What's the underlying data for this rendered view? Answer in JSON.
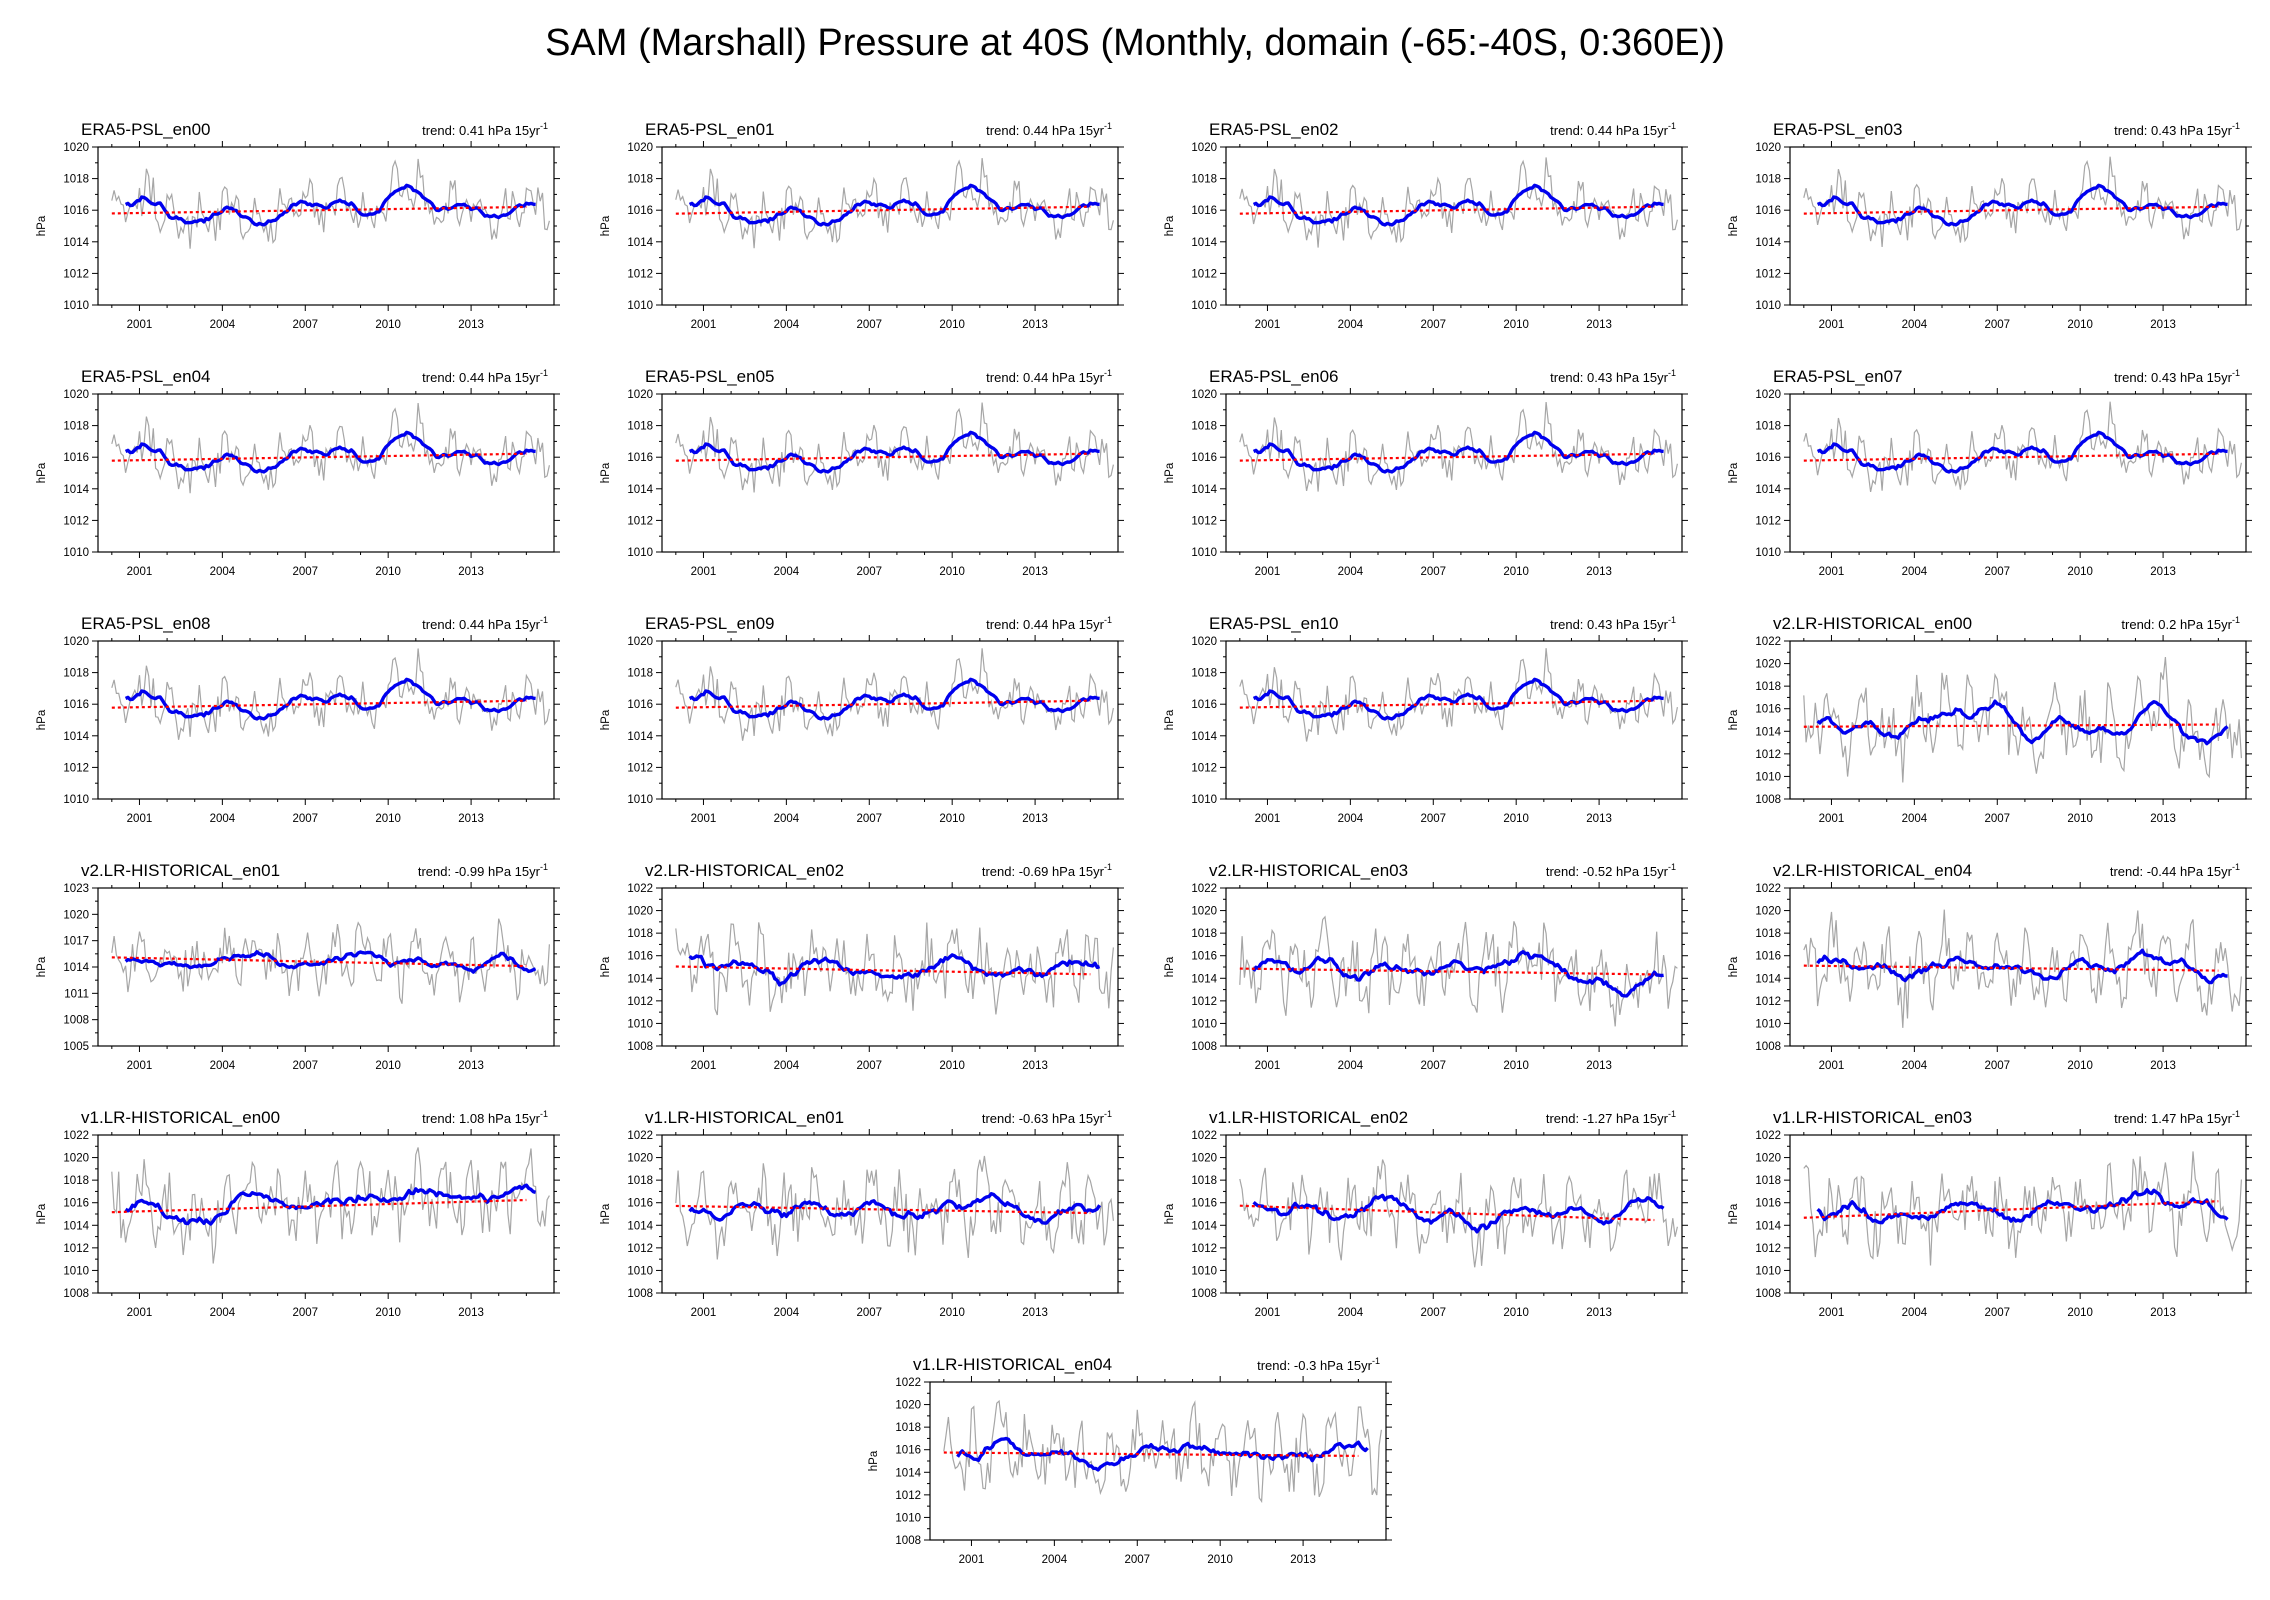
{
  "figure": {
    "title": "SAM (Marshall) Pressure at 40S (Monthly, domain (-65:-40S, 0:360E))",
    "ylabel": "hPa",
    "trend_unit": "hPa 15yr",
    "trend_unit_superscript": "-1"
  },
  "style": {
    "raw_color": "#a6a6a6",
    "running_mean_color": "#0000ee",
    "trend_color": "#ff0000",
    "background": "#ffffff"
  },
  "chart_data": [
    {
      "type": "line",
      "name": "ERA5-PSL_en00",
      "trend": "0.41",
      "x_ticks": [
        2001,
        2004,
        2007,
        2010,
        2013
      ],
      "xlim": [
        1999.5,
        2016.0
      ],
      "ylim": [
        1010,
        1020
      ],
      "y_ticks": [
        1010,
        1012,
        1014,
        1016,
        1018,
        1020
      ],
      "mean": 1016.0,
      "shape": "era5",
      "trend_slope": 0.41,
      "series": [
        "monthly",
        "running mean",
        "trend"
      ]
    },
    {
      "type": "line",
      "name": "ERA5-PSL_en01",
      "trend": "0.44",
      "x_ticks": [
        2001,
        2004,
        2007,
        2010,
        2013
      ],
      "xlim": [
        1999.5,
        2016.0
      ],
      "ylim": [
        1010,
        1020
      ],
      "y_ticks": [
        1010,
        1012,
        1014,
        1016,
        1018,
        1020
      ],
      "mean": 1016.0,
      "shape": "era5",
      "trend_slope": 0.44,
      "series": [
        "monthly",
        "running mean",
        "trend"
      ]
    },
    {
      "type": "line",
      "name": "ERA5-PSL_en02",
      "trend": "0.44",
      "x_ticks": [
        2001,
        2004,
        2007,
        2010,
        2013
      ],
      "xlim": [
        1999.5,
        2016.0
      ],
      "ylim": [
        1010,
        1020
      ],
      "y_ticks": [
        1010,
        1012,
        1014,
        1016,
        1018,
        1020
      ],
      "mean": 1016.0,
      "shape": "era5",
      "trend_slope": 0.44,
      "series": [
        "monthly",
        "running mean",
        "trend"
      ]
    },
    {
      "type": "line",
      "name": "ERA5-PSL_en03",
      "trend": "0.43",
      "x_ticks": [
        2001,
        2004,
        2007,
        2010,
        2013
      ],
      "xlim": [
        1999.5,
        2016.0
      ],
      "ylim": [
        1010,
        1020
      ],
      "y_ticks": [
        1010,
        1012,
        1014,
        1016,
        1018,
        1020
      ],
      "mean": 1016.0,
      "shape": "era5",
      "trend_slope": 0.43,
      "series": [
        "monthly",
        "running mean",
        "trend"
      ]
    },
    {
      "type": "line",
      "name": "ERA5-PSL_en04",
      "trend": "0.44",
      "x_ticks": [
        2001,
        2004,
        2007,
        2010,
        2013
      ],
      "xlim": [
        1999.5,
        2016.0
      ],
      "ylim": [
        1010,
        1020
      ],
      "y_ticks": [
        1010,
        1012,
        1014,
        1016,
        1018,
        1020
      ],
      "mean": 1016.0,
      "shape": "era5",
      "trend_slope": 0.44,
      "series": [
        "monthly",
        "running mean",
        "trend"
      ]
    },
    {
      "type": "line",
      "name": "ERA5-PSL_en05",
      "trend": "0.44",
      "x_ticks": [
        2001,
        2004,
        2007,
        2010,
        2013
      ],
      "xlim": [
        1999.5,
        2016.0
      ],
      "ylim": [
        1010,
        1020
      ],
      "y_ticks": [
        1010,
        1012,
        1014,
        1016,
        1018,
        1020
      ],
      "mean": 1016.0,
      "shape": "era5",
      "trend_slope": 0.44,
      "series": [
        "monthly",
        "running mean",
        "trend"
      ]
    },
    {
      "type": "line",
      "name": "ERA5-PSL_en06",
      "trend": "0.43",
      "x_ticks": [
        2001,
        2004,
        2007,
        2010,
        2013
      ],
      "xlim": [
        1999.5,
        2016.0
      ],
      "ylim": [
        1010,
        1020
      ],
      "y_ticks": [
        1010,
        1012,
        1014,
        1016,
        1018,
        1020
      ],
      "mean": 1016.0,
      "shape": "era5",
      "trend_slope": 0.43,
      "series": [
        "monthly",
        "running mean",
        "trend"
      ]
    },
    {
      "type": "line",
      "name": "ERA5-PSL_en07",
      "trend": "0.43",
      "x_ticks": [
        2001,
        2004,
        2007,
        2010,
        2013
      ],
      "xlim": [
        1999.5,
        2016.0
      ],
      "ylim": [
        1010,
        1020
      ],
      "y_ticks": [
        1010,
        1012,
        1014,
        1016,
        1018,
        1020
      ],
      "mean": 1016.0,
      "shape": "era5",
      "trend_slope": 0.43,
      "series": [
        "monthly",
        "running mean",
        "trend"
      ]
    },
    {
      "type": "line",
      "name": "ERA5-PSL_en08",
      "trend": "0.44",
      "x_ticks": [
        2001,
        2004,
        2007,
        2010,
        2013
      ],
      "xlim": [
        1999.5,
        2016.0
      ],
      "ylim": [
        1010,
        1020
      ],
      "y_ticks": [
        1010,
        1012,
        1014,
        1016,
        1018,
        1020
      ],
      "mean": 1016.0,
      "shape": "era5",
      "trend_slope": 0.44,
      "series": [
        "monthly",
        "running mean",
        "trend"
      ]
    },
    {
      "type": "line",
      "name": "ERA5-PSL_en09",
      "trend": "0.44",
      "x_ticks": [
        2001,
        2004,
        2007,
        2010,
        2013
      ],
      "xlim": [
        1999.5,
        2016.0
      ],
      "ylim": [
        1010,
        1020
      ],
      "y_ticks": [
        1010,
        1012,
        1014,
        1016,
        1018,
        1020
      ],
      "mean": 1016.0,
      "shape": "era5",
      "trend_slope": 0.44,
      "series": [
        "monthly",
        "running mean",
        "trend"
      ]
    },
    {
      "type": "line",
      "name": "ERA5-PSL_en10",
      "trend": "0.43",
      "x_ticks": [
        2001,
        2004,
        2007,
        2010,
        2013
      ],
      "xlim": [
        1999.5,
        2016.0
      ],
      "ylim": [
        1010,
        1020
      ],
      "y_ticks": [
        1010,
        1012,
        1014,
        1016,
        1018,
        1020
      ],
      "mean": 1016.0,
      "shape": "era5",
      "trend_slope": 0.43,
      "series": [
        "monthly",
        "running mean",
        "trend"
      ]
    },
    {
      "type": "line",
      "name": "v2.LR-HISTORICAL_en00",
      "trend": "0.2",
      "x_ticks": [
        2001,
        2004,
        2007,
        2010,
        2013
      ],
      "xlim": [
        1999.5,
        2016.0
      ],
      "ylim": [
        1008,
        1022
      ],
      "y_ticks": [
        1008,
        1010,
        1012,
        1014,
        1016,
        1018,
        1020,
        1022
      ],
      "mean": 1014.5,
      "shape": "m1",
      "trend_slope": 0.2,
      "series": [
        "monthly",
        "running mean",
        "trend"
      ]
    },
    {
      "type": "line",
      "name": "v2.LR-HISTORICAL_en01",
      "trend": "-0.99",
      "x_ticks": [
        2001,
        2004,
        2007,
        2010,
        2013
      ],
      "xlim": [
        1999.5,
        2016.0
      ],
      "ylim": [
        1005,
        1023
      ],
      "y_ticks": [
        1005,
        1008,
        1011,
        1014,
        1017,
        1020,
        1023
      ],
      "mean": 1014.6,
      "shape": "m2",
      "trend_slope": -0.99,
      "series": [
        "monthly",
        "running mean",
        "trend"
      ]
    },
    {
      "type": "line",
      "name": "v2.LR-HISTORICAL_en02",
      "trend": "-0.69",
      "x_ticks": [
        2001,
        2004,
        2007,
        2010,
        2013
      ],
      "xlim": [
        1999.5,
        2016.0
      ],
      "ylim": [
        1008,
        1022
      ],
      "y_ticks": [
        1008,
        1010,
        1012,
        1014,
        1016,
        1018,
        1020,
        1022
      ],
      "mean": 1014.7,
      "shape": "m3",
      "trend_slope": -0.69,
      "series": [
        "monthly",
        "running mean",
        "trend"
      ]
    },
    {
      "type": "line",
      "name": "v2.LR-HISTORICAL_en03",
      "trend": "-0.52",
      "x_ticks": [
        2001,
        2004,
        2007,
        2010,
        2013
      ],
      "xlim": [
        1999.5,
        2016.0
      ],
      "ylim": [
        1008,
        1022
      ],
      "y_ticks": [
        1008,
        1010,
        1012,
        1014,
        1016,
        1018,
        1020,
        1022
      ],
      "mean": 1014.6,
      "shape": "m4",
      "trend_slope": -0.52,
      "series": [
        "monthly",
        "running mean",
        "trend"
      ]
    },
    {
      "type": "line",
      "name": "v2.LR-HISTORICAL_en04",
      "trend": "-0.44",
      "x_ticks": [
        2001,
        2004,
        2007,
        2010,
        2013
      ],
      "xlim": [
        1999.5,
        2016.0
      ],
      "ylim": [
        1008,
        1022
      ],
      "y_ticks": [
        1008,
        1010,
        1012,
        1014,
        1016,
        1018,
        1020,
        1022
      ],
      "mean": 1014.9,
      "shape": "m5",
      "trend_slope": -0.44,
      "series": [
        "monthly",
        "running mean",
        "trend"
      ]
    },
    {
      "type": "line",
      "name": "v1.LR-HISTORICAL_en00",
      "trend": "1.08",
      "x_ticks": [
        2001,
        2004,
        2007,
        2010,
        2013
      ],
      "xlim": [
        1999.5,
        2016.0
      ],
      "ylim": [
        1008,
        1022
      ],
      "y_ticks": [
        1008,
        1010,
        1012,
        1014,
        1016,
        1018,
        1020,
        1022
      ],
      "mean": 1015.7,
      "shape": "m6",
      "trend_slope": 1.08,
      "series": [
        "monthly",
        "running mean",
        "trend"
      ]
    },
    {
      "type": "line",
      "name": "v1.LR-HISTORICAL_en01",
      "trend": "-0.63",
      "x_ticks": [
        2001,
        2004,
        2007,
        2010,
        2013
      ],
      "xlim": [
        1999.5,
        2016.0
      ],
      "ylim": [
        1008,
        1022
      ],
      "y_ticks": [
        1008,
        1010,
        1012,
        1014,
        1016,
        1018,
        1020,
        1022
      ],
      "mean": 1015.4,
      "shape": "m7",
      "trend_slope": -0.63,
      "series": [
        "monthly",
        "running mean",
        "trend"
      ]
    },
    {
      "type": "line",
      "name": "v1.LR-HISTORICAL_en02",
      "trend": "-1.27",
      "x_ticks": [
        2001,
        2004,
        2007,
        2010,
        2013
      ],
      "xlim": [
        1999.5,
        2016.0
      ],
      "ylim": [
        1008,
        1022
      ],
      "y_ticks": [
        1008,
        1010,
        1012,
        1014,
        1016,
        1018,
        1020,
        1022
      ],
      "mean": 1015.1,
      "shape": "m8",
      "trend_slope": -1.27,
      "series": [
        "monthly",
        "running mean",
        "trend"
      ]
    },
    {
      "type": "line",
      "name": "v1.LR-HISTORICAL_en03",
      "trend": "1.47",
      "x_ticks": [
        2001,
        2004,
        2007,
        2010,
        2013
      ],
      "xlim": [
        1999.5,
        2016.0
      ],
      "ylim": [
        1008,
        1022
      ],
      "y_ticks": [
        1008,
        1010,
        1012,
        1014,
        1016,
        1018,
        1020,
        1022
      ],
      "mean": 1015.4,
      "shape": "m9",
      "trend_slope": 1.47,
      "series": [
        "monthly",
        "running mean",
        "trend"
      ]
    },
    {
      "type": "line",
      "name": "v1.LR-HISTORICAL_en04",
      "trend": "-0.3",
      "x_ticks": [
        2001,
        2004,
        2007,
        2010,
        2013
      ],
      "xlim": [
        1999.5,
        2016.0
      ],
      "ylim": [
        1008,
        1022
      ],
      "y_ticks": [
        1008,
        1010,
        1012,
        1014,
        1016,
        1018,
        1020,
        1022
      ],
      "mean": 1015.6,
      "shape": "m10",
      "trend_slope": -0.3,
      "series": [
        "monthly",
        "running mean",
        "trend"
      ]
    }
  ]
}
